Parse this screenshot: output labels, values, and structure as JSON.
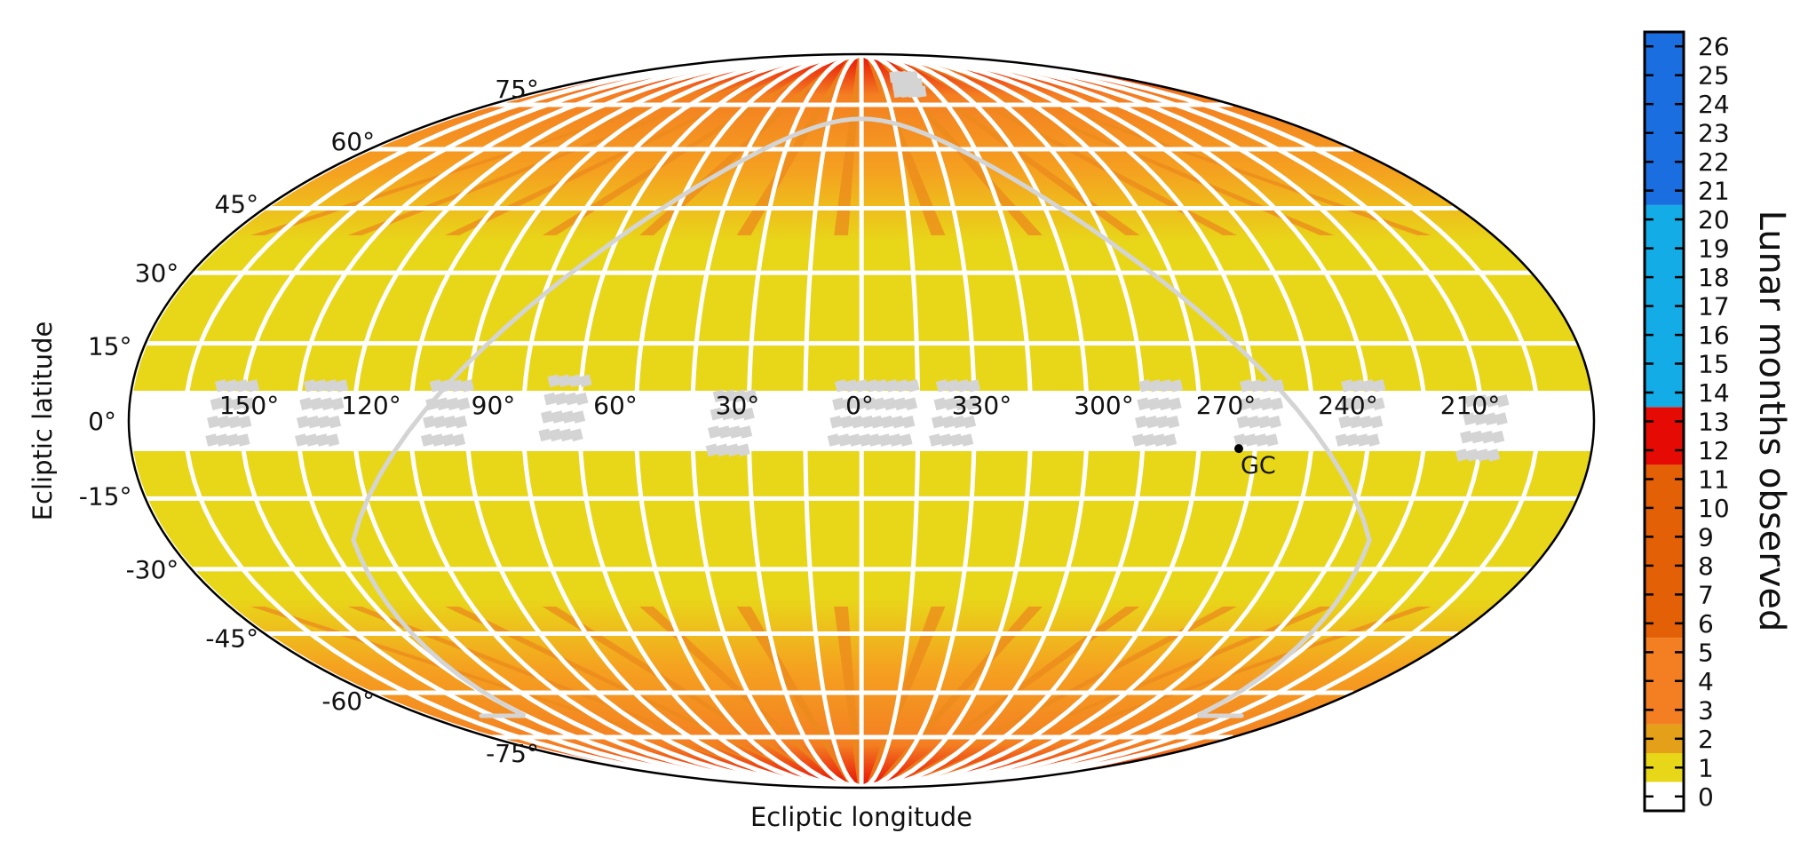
{
  "chart_data": {
    "type": "heatmap",
    "projection": "Mollweide",
    "xlabel": "Ecliptic longitude",
    "ylabel": "Ecliptic latitude",
    "lon_ticks": [
      {
        "value": 150,
        "label": "150°"
      },
      {
        "value": 120,
        "label": "120°"
      },
      {
        "value": 90,
        "label": "90°"
      },
      {
        "value": 60,
        "label": "60°"
      },
      {
        "value": 30,
        "label": "30°"
      },
      {
        "value": 0,
        "label": "0°"
      },
      {
        "value": -30,
        "label": "330°"
      },
      {
        "value": -60,
        "label": "300°"
      },
      {
        "value": -90,
        "label": "270°"
      },
      {
        "value": -120,
        "label": "240°"
      },
      {
        "value": -150,
        "label": "210°"
      }
    ],
    "lat_ticks": [
      {
        "value": 75,
        "label": "75°"
      },
      {
        "value": 60,
        "label": "60°"
      },
      {
        "value": 45,
        "label": "45°"
      },
      {
        "value": 30,
        "label": "30°"
      },
      {
        "value": 15,
        "label": "15°"
      },
      {
        "value": 0,
        "label": "0°"
      },
      {
        "value": -15,
        "label": "-15°"
      },
      {
        "value": -30,
        "label": "-30°"
      },
      {
        "value": -45,
        "label": "-45°"
      },
      {
        "value": -60,
        "label": "-60°"
      },
      {
        "value": -75,
        "label": "-75°"
      }
    ],
    "annotation": {
      "label": "GC",
      "lon": -93,
      "lat": -5.5
    },
    "colorbar": {
      "label": "Lunar months observed",
      "min": 0,
      "max": 27,
      "ticks": [
        "0",
        "1",
        "2",
        "3",
        "4",
        "5",
        "6",
        "7",
        "8",
        "9",
        "10",
        "11",
        "12",
        "13",
        "14",
        "15",
        "16",
        "17",
        "18",
        "19",
        "20",
        "21",
        "22",
        "23",
        "24",
        "25",
        "26"
      ],
      "bands": [
        {
          "from": 0,
          "to": 1,
          "color": "#ffffff"
        },
        {
          "from": 1,
          "to": 2,
          "color": "#e8d719"
        },
        {
          "from": 2,
          "to": 3,
          "color": "#e3a018"
        },
        {
          "from": 3,
          "to": 6,
          "color": "#f47f22"
        },
        {
          "from": 6,
          "to": 12,
          "color": "#e46007"
        },
        {
          "from": 12,
          "to": 14,
          "color": "#e60a05"
        },
        {
          "from": 14,
          "to": 21,
          "color": "#14ace6"
        },
        {
          "from": 21,
          "to": 27,
          "color": "#1a6ee0"
        }
      ]
    },
    "colors": {
      "coverage_1": "#e8d719",
      "coverage_2": "#e3a018",
      "coverage_3": "#f47f22",
      "coverage_high": "#e60a05",
      "ecliptic_gap": "#ffffff",
      "grid_lines": "#ffffff",
      "galactic_plane": "#d4d4d4",
      "masked_tiles": "#d4d4d4"
    }
  }
}
